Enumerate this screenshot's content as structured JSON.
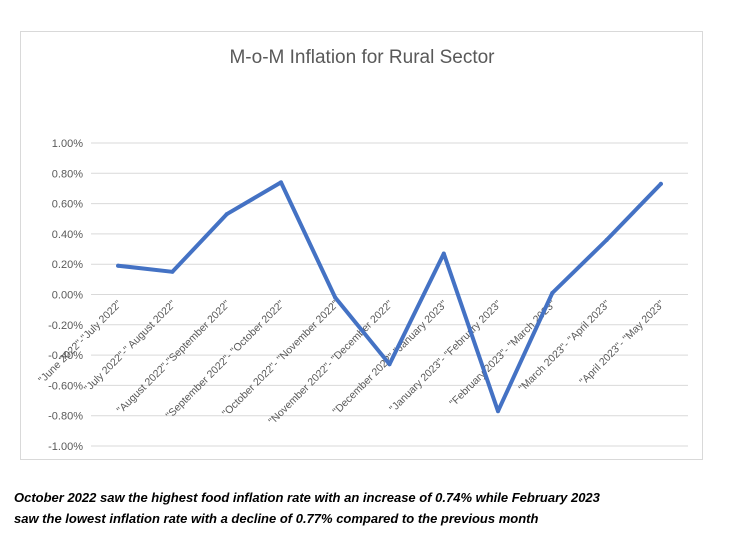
{
  "chart_data": {
    "type": "line",
    "title": "M-o-M Inflation for Rural Sector",
    "xlabel": "",
    "ylabel": "",
    "categories": [
      "\"June 2022\"-\"July 2022\"",
      "\"July 2022\"-\" August 2022\"",
      "\"August 2022\"-\"September 2022\"",
      "\"September 2022\"- \"October 2022\"",
      "\"October 2022\"- \"November 2022\"",
      "\"November 2022\"- \"December 2022\"",
      "\"December 2022\"-\"January 2023\"",
      "\"January 2023\"- \"February 2023\"",
      "\"February 2023\"- \"March 2023\"",
      "\"March 2023\"- \"April 2023\"",
      "\"April 2023\"- \"May 2023\""
    ],
    "series": [
      {
        "values": [
          0.0019,
          0.0015,
          0.0053,
          0.0074,
          -0.0002,
          -0.0046,
          0.0027,
          -0.0077,
          0.0001,
          0.0036,
          0.0073
        ]
      }
    ],
    "ylim": [
      -0.01,
      0.01
    ],
    "yticks": [
      0.01,
      0.008,
      0.006,
      0.004,
      0.002,
      0,
      -0.002,
      -0.004,
      -0.006,
      -0.008,
      -0.01
    ],
    "ytick_labels": [
      "1.00%",
      "0.80%",
      "0.60%",
      "0.40%",
      "0.20%",
      "0.00%",
      "-0.20%",
      "-0.40%",
      "-0.60%",
      "-0.80%",
      "-1.00%"
    ],
    "grid": true,
    "legend": "none",
    "line_color": "#4472C4",
    "grid_color": "#d9d9d9",
    "text_color": "#595959"
  },
  "caption": {
    "line1": "October 2022 saw the highest food inflation rate with an increase of 0.74% while February 2023",
    "line2": "saw the lowest inflation rate with a decline of 0.77% compared to the previous month"
  }
}
